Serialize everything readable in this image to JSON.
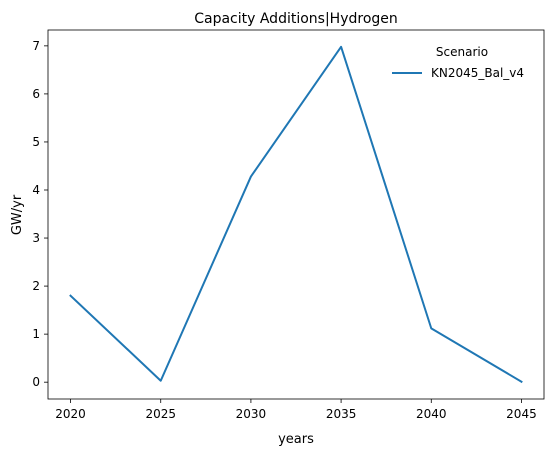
{
  "chart_data": {
    "type": "line",
    "title": "Capacity Additions|Hydrogen",
    "xlabel": "years",
    "ylabel": "GW/yr",
    "x": [
      2020,
      2025,
      2030,
      2035,
      2040,
      2045
    ],
    "x_ticks": [
      2020,
      2025,
      2030,
      2035,
      2040,
      2045
    ],
    "y_ticks": [
      0,
      1,
      2,
      3,
      4,
      5,
      6,
      7
    ],
    "xlim": [
      2018.75,
      2046.25
    ],
    "ylim": [
      -0.35,
      7.33
    ],
    "grid": false,
    "legend_title": "Scenario",
    "legend_position": "top-right",
    "series": [
      {
        "name": "KN2045_Bal_v4",
        "color": "#1f77b4",
        "values": [
          1.8,
          0.03,
          4.28,
          6.98,
          1.12,
          0.01
        ]
      }
    ]
  }
}
